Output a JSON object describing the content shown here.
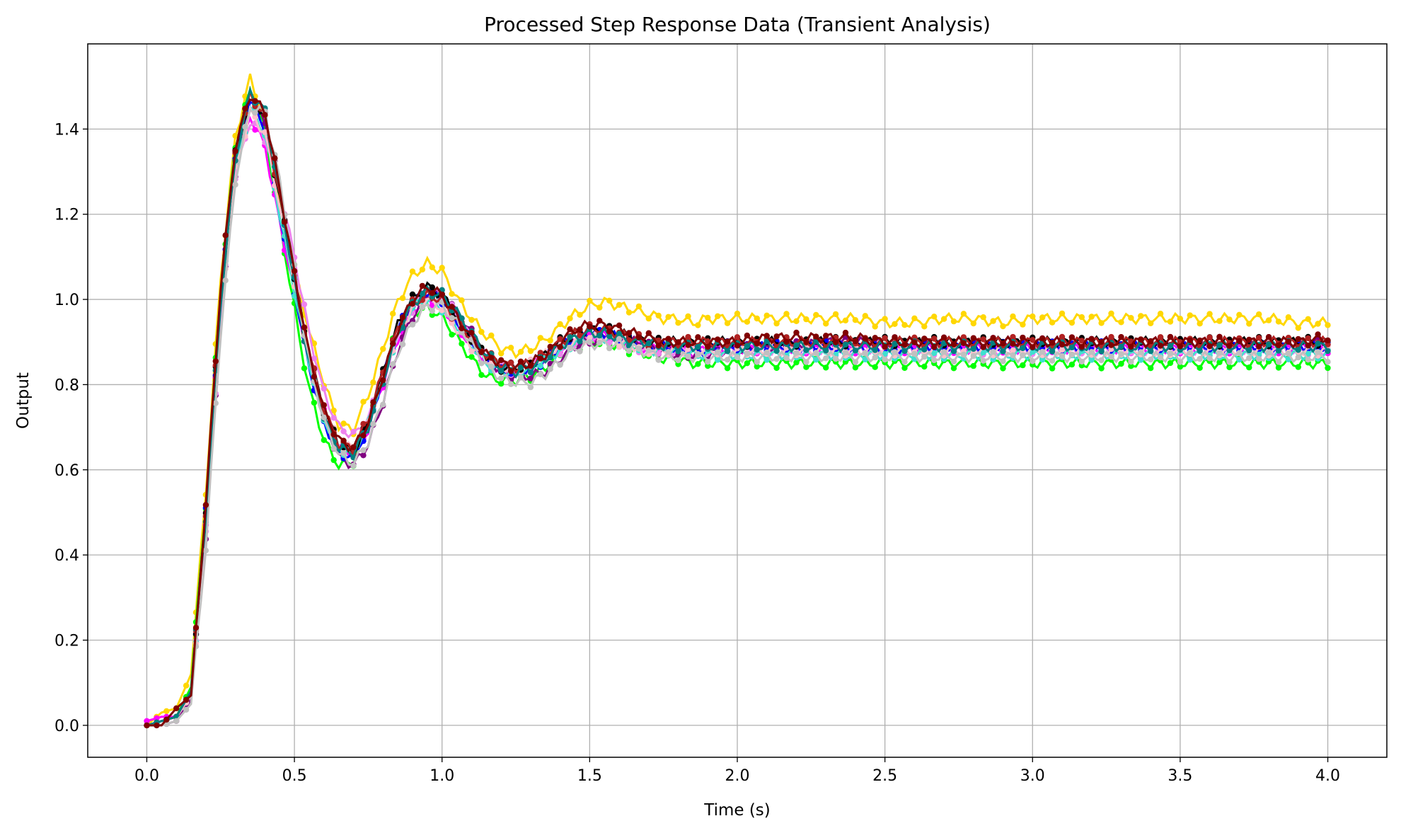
{
  "chart_data": {
    "type": "line",
    "title": "Processed Step Response Data (Transient Analysis)",
    "xlabel": "Time (s)",
    "ylabel": "Output",
    "xlim": [
      -0.2,
      4.2
    ],
    "ylim": [
      -0.075,
      1.6
    ],
    "xticks": [
      "0.0",
      "0.5",
      "1.0",
      "1.5",
      "2.0",
      "2.5",
      "3.0",
      "3.5",
      "4.0"
    ],
    "yticks": [
      "0.0",
      "0.2",
      "0.4",
      "0.6",
      "0.8",
      "1.0",
      "1.2",
      "1.4"
    ],
    "xtick_values": [
      0,
      0.5,
      1,
      1.5,
      2,
      2.5,
      3,
      3.5,
      4
    ],
    "ytick_values": [
      0,
      0.2,
      0.4,
      0.6,
      0.8,
      1.0,
      1.2,
      1.4
    ],
    "grid": true,
    "x": [
      0.0,
      0.05,
      0.1,
      0.15,
      0.2,
      0.25,
      0.3,
      0.35,
      0.4,
      0.45,
      0.5,
      0.55,
      0.6,
      0.65,
      0.7,
      0.75,
      0.8,
      0.85,
      0.9,
      0.95,
      1.0,
      1.05,
      1.1,
      1.15,
      1.2,
      1.25,
      1.3,
      1.35,
      1.4,
      1.45,
      1.5,
      1.55,
      1.6,
      1.65,
      1.7,
      1.75,
      1.8,
      1.85,
      1.9,
      1.95,
      2.0,
      2.1,
      2.2,
      2.3,
      2.4,
      2.5,
      2.6,
      2.7,
      2.8,
      2.9,
      3.0,
      3.1,
      3.2,
      3.3,
      3.4,
      3.5,
      3.6,
      3.7,
      3.8,
      3.9,
      4.0
    ],
    "series": [
      {
        "color": "#FFD700",
        "offset": 0.025,
        "values": [
          0.0,
          0.03,
          0.04,
          0.12,
          0.55,
          1.05,
          1.38,
          1.52,
          1.42,
          1.22,
          1.05,
          0.9,
          0.78,
          0.68,
          0.67,
          0.75,
          0.86,
          0.97,
          1.03,
          1.06,
          1.04,
          0.98,
          0.93,
          0.89,
          0.86,
          0.85,
          0.86,
          0.88,
          0.91,
          0.94,
          0.96,
          0.97,
          0.96,
          0.95,
          0.94,
          0.93,
          0.93,
          0.92,
          0.93,
          0.93,
          0.93,
          0.93,
          0.93,
          0.93,
          0.93,
          0.92,
          0.92,
          0.93,
          0.93,
          0.92,
          0.93,
          0.93,
          0.93,
          0.93,
          0.93,
          0.93,
          0.93,
          0.93,
          0.93,
          0.92,
          0.92
        ]
      },
      {
        "color": "#00FF00",
        "offset": -0.01,
        "values": [
          0.0,
          0.01,
          0.02,
          0.09,
          0.52,
          1.02,
          1.36,
          1.49,
          1.4,
          1.18,
          0.98,
          0.8,
          0.68,
          0.62,
          0.63,
          0.72,
          0.84,
          0.94,
          0.98,
          0.99,
          0.97,
          0.92,
          0.87,
          0.83,
          0.82,
          0.82,
          0.83,
          0.85,
          0.88,
          0.9,
          0.91,
          0.91,
          0.9,
          0.89,
          0.88,
          0.87,
          0.87,
          0.86,
          0.86,
          0.86,
          0.86,
          0.86,
          0.86,
          0.86,
          0.86,
          0.86,
          0.86,
          0.86,
          0.86,
          0.86,
          0.86,
          0.86,
          0.86,
          0.86,
          0.86,
          0.86,
          0.86,
          0.86,
          0.86,
          0.86,
          0.86
        ]
      },
      {
        "color": "#FF00FF",
        "offset": -0.005,
        "values": [
          0.01,
          0.02,
          0.02,
          0.08,
          0.48,
          0.98,
          1.3,
          1.43,
          1.36,
          1.18,
          1.02,
          0.86,
          0.74,
          0.66,
          0.64,
          0.7,
          0.81,
          0.91,
          0.98,
          1.01,
          0.99,
          0.94,
          0.9,
          0.86,
          0.84,
          0.84,
          0.85,
          0.87,
          0.89,
          0.91,
          0.92,
          0.92,
          0.91,
          0.9,
          0.89,
          0.89,
          0.89,
          0.88,
          0.89,
          0.89,
          0.89,
          0.89,
          0.89,
          0.89,
          0.89,
          0.89,
          0.89,
          0.89,
          0.89,
          0.89,
          0.89,
          0.89,
          0.89,
          0.89,
          0.89,
          0.89,
          0.89,
          0.89,
          0.89,
          0.89,
          0.89
        ]
      },
      {
        "color": "#800080",
        "offset": 0.0,
        "values": [
          0.0,
          0.0,
          0.01,
          0.06,
          0.44,
          0.95,
          1.3,
          1.46,
          1.42,
          1.26,
          1.06,
          0.86,
          0.72,
          0.63,
          0.61,
          0.66,
          0.76,
          0.88,
          0.96,
          1.01,
          1.01,
          0.97,
          0.92,
          0.87,
          0.83,
          0.82,
          0.82,
          0.83,
          0.86,
          0.89,
          0.9,
          0.91,
          0.91,
          0.9,
          0.89,
          0.88,
          0.87,
          0.87,
          0.87,
          0.88,
          0.88,
          0.89,
          0.89,
          0.9,
          0.9,
          0.9,
          0.9,
          0.9,
          0.9,
          0.9,
          0.9,
          0.9,
          0.9,
          0.9,
          0.9,
          0.9,
          0.9,
          0.9,
          0.9,
          0.9,
          0.9
        ]
      },
      {
        "color": "#EE82EE",
        "offset": 0.0,
        "values": [
          0.0,
          0.01,
          0.02,
          0.07,
          0.45,
          0.96,
          1.29,
          1.42,
          1.38,
          1.26,
          1.1,
          0.92,
          0.78,
          0.7,
          0.68,
          0.72,
          0.82,
          0.92,
          0.98,
          1.02,
          1.01,
          0.96,
          0.91,
          0.87,
          0.84,
          0.83,
          0.84,
          0.86,
          0.88,
          0.9,
          0.91,
          0.91,
          0.9,
          0.89,
          0.88,
          0.88,
          0.88,
          0.88,
          0.88,
          0.88,
          0.88,
          0.88,
          0.88,
          0.88,
          0.88,
          0.88,
          0.88,
          0.88,
          0.88,
          0.88,
          0.88,
          0.88,
          0.88,
          0.88,
          0.88,
          0.88,
          0.88,
          0.88,
          0.88,
          0.88,
          0.88
        ]
      },
      {
        "color": "#0000FF",
        "offset": 0.0,
        "values": [
          0.0,
          0.01,
          0.02,
          0.08,
          0.5,
          1.0,
          1.33,
          1.47,
          1.4,
          1.2,
          1.02,
          0.84,
          0.71,
          0.64,
          0.63,
          0.7,
          0.82,
          0.93,
          0.99,
          1.02,
          1.0,
          0.95,
          0.9,
          0.86,
          0.83,
          0.83,
          0.84,
          0.86,
          0.89,
          0.91,
          0.92,
          0.92,
          0.91,
          0.9,
          0.89,
          0.89,
          0.88,
          0.88,
          0.88,
          0.89,
          0.89,
          0.89,
          0.89,
          0.89,
          0.89,
          0.88,
          0.89,
          0.89,
          0.89,
          0.89,
          0.89,
          0.89,
          0.89,
          0.89,
          0.89,
          0.89,
          0.89,
          0.89,
          0.89,
          0.89,
          0.89
        ]
      },
      {
        "color": "#40E0D0",
        "offset": 0.0,
        "values": [
          0.0,
          0.01,
          0.02,
          0.07,
          0.48,
          0.98,
          1.31,
          1.45,
          1.39,
          1.2,
          1.02,
          0.85,
          0.72,
          0.65,
          0.64,
          0.71,
          0.82,
          0.92,
          0.98,
          1.0,
          0.98,
          0.94,
          0.89,
          0.85,
          0.83,
          0.83,
          0.84,
          0.86,
          0.88,
          0.9,
          0.91,
          0.91,
          0.9,
          0.89,
          0.88,
          0.88,
          0.88,
          0.87,
          0.87,
          0.87,
          0.87,
          0.87,
          0.87,
          0.87,
          0.87,
          0.87,
          0.87,
          0.87,
          0.87,
          0.87,
          0.87,
          0.87,
          0.87,
          0.87,
          0.87,
          0.87,
          0.87,
          0.87,
          0.87,
          0.87,
          0.87
        ]
      },
      {
        "color": "#FFC0CB",
        "offset": 0.0,
        "values": [
          0.0,
          0.01,
          0.02,
          0.07,
          0.47,
          0.97,
          1.3,
          1.44,
          1.39,
          1.22,
          1.04,
          0.87,
          0.74,
          0.66,
          0.65,
          0.71,
          0.82,
          0.92,
          0.98,
          1.0,
          0.98,
          0.93,
          0.89,
          0.86,
          0.84,
          0.84,
          0.85,
          0.87,
          0.89,
          0.9,
          0.91,
          0.91,
          0.9,
          0.89,
          0.88,
          0.88,
          0.88,
          0.88,
          0.88,
          0.88,
          0.88,
          0.88,
          0.88,
          0.88,
          0.88,
          0.88,
          0.88,
          0.88,
          0.88,
          0.88,
          0.88,
          0.88,
          0.88,
          0.88,
          0.88,
          0.88,
          0.88,
          0.88,
          0.88,
          0.88,
          0.88
        ]
      },
      {
        "color": "#000000",
        "offset": 0.0,
        "values": [
          0.0,
          0.01,
          0.02,
          0.08,
          0.5,
          1.0,
          1.34,
          1.48,
          1.43,
          1.24,
          1.05,
          0.87,
          0.74,
          0.66,
          0.64,
          0.71,
          0.83,
          0.94,
          1.0,
          1.03,
          1.01,
          0.96,
          0.91,
          0.87,
          0.84,
          0.84,
          0.85,
          0.87,
          0.9,
          0.92,
          0.93,
          0.93,
          0.92,
          0.91,
          0.9,
          0.9,
          0.9,
          0.9,
          0.9,
          0.9,
          0.9,
          0.9,
          0.9,
          0.9,
          0.9,
          0.9,
          0.9,
          0.9,
          0.9,
          0.9,
          0.9,
          0.9,
          0.9,
          0.9,
          0.9,
          0.9,
          0.9,
          0.9,
          0.9,
          0.9,
          0.9
        ]
      },
      {
        "color": "#B22222",
        "offset": 0.0,
        "values": [
          0.0,
          0.01,
          0.02,
          0.08,
          0.5,
          1.0,
          1.34,
          1.48,
          1.43,
          1.24,
          1.05,
          0.87,
          0.74,
          0.66,
          0.65,
          0.72,
          0.83,
          0.93,
          0.99,
          1.01,
          1.0,
          0.95,
          0.91,
          0.87,
          0.85,
          0.84,
          0.85,
          0.87,
          0.9,
          0.92,
          0.93,
          0.93,
          0.92,
          0.91,
          0.9,
          0.9,
          0.9,
          0.9,
          0.9,
          0.9,
          0.9,
          0.9,
          0.9,
          0.9,
          0.9,
          0.9,
          0.9,
          0.9,
          0.9,
          0.9,
          0.9,
          0.9,
          0.9,
          0.9,
          0.9,
          0.9,
          0.9,
          0.9,
          0.9,
          0.9,
          0.9
        ]
      },
      {
        "color": "#008080",
        "offset": 0.0,
        "values": [
          0.0,
          0.01,
          0.02,
          0.08,
          0.49,
          0.99,
          1.33,
          1.49,
          1.44,
          1.25,
          1.04,
          0.85,
          0.72,
          0.65,
          0.64,
          0.7,
          0.81,
          0.92,
          0.99,
          1.02,
          1.01,
          0.97,
          0.92,
          0.87,
          0.84,
          0.83,
          0.84,
          0.86,
          0.89,
          0.91,
          0.92,
          0.92,
          0.91,
          0.9,
          0.9,
          0.89,
          0.89,
          0.89,
          0.89,
          0.89,
          0.89,
          0.89,
          0.89,
          0.89,
          0.89,
          0.89,
          0.89,
          0.89,
          0.89,
          0.89,
          0.89,
          0.89,
          0.89,
          0.89,
          0.89,
          0.89,
          0.89,
          0.89,
          0.89,
          0.89,
          0.89
        ]
      },
      {
        "color": "#C0C0C0",
        "offset": -0.015,
        "values": [
          0.0,
          0.0,
          0.01,
          0.05,
          0.42,
          0.92,
          1.28,
          1.45,
          1.44,
          1.28,
          1.07,
          0.87,
          0.73,
          0.65,
          0.63,
          0.68,
          0.78,
          0.89,
          0.96,
          1.0,
          1.0,
          0.96,
          0.91,
          0.86,
          0.83,
          0.82,
          0.82,
          0.84,
          0.87,
          0.9,
          0.91,
          0.91,
          0.91,
          0.9,
          0.89,
          0.88,
          0.88,
          0.88,
          0.88,
          0.88,
          0.88,
          0.88,
          0.88,
          0.88,
          0.88,
          0.88,
          0.88,
          0.88,
          0.88,
          0.88,
          0.88,
          0.88,
          0.88,
          0.88,
          0.88,
          0.88,
          0.88,
          0.88,
          0.88,
          0.88,
          0.88
        ]
      },
      {
        "color": "#800000",
        "offset": 0.0,
        "values": [
          0.0,
          0.0,
          0.04,
          0.07,
          0.52,
          1.03,
          1.36,
          1.48,
          1.44,
          1.26,
          1.06,
          0.87,
          0.74,
          0.67,
          0.65,
          0.71,
          0.82,
          0.93,
          1.0,
          1.03,
          1.01,
          0.96,
          0.91,
          0.87,
          0.85,
          0.84,
          0.85,
          0.87,
          0.9,
          0.93,
          0.94,
          0.94,
          0.93,
          0.92,
          0.91,
          0.9,
          0.9,
          0.9,
          0.9,
          0.9,
          0.9,
          0.91,
          0.91,
          0.91,
          0.91,
          0.9,
          0.9,
          0.9,
          0.9,
          0.9,
          0.9,
          0.9,
          0.9,
          0.9,
          0.9,
          0.9,
          0.9,
          0.9,
          0.9,
          0.9,
          0.91
        ]
      }
    ]
  }
}
